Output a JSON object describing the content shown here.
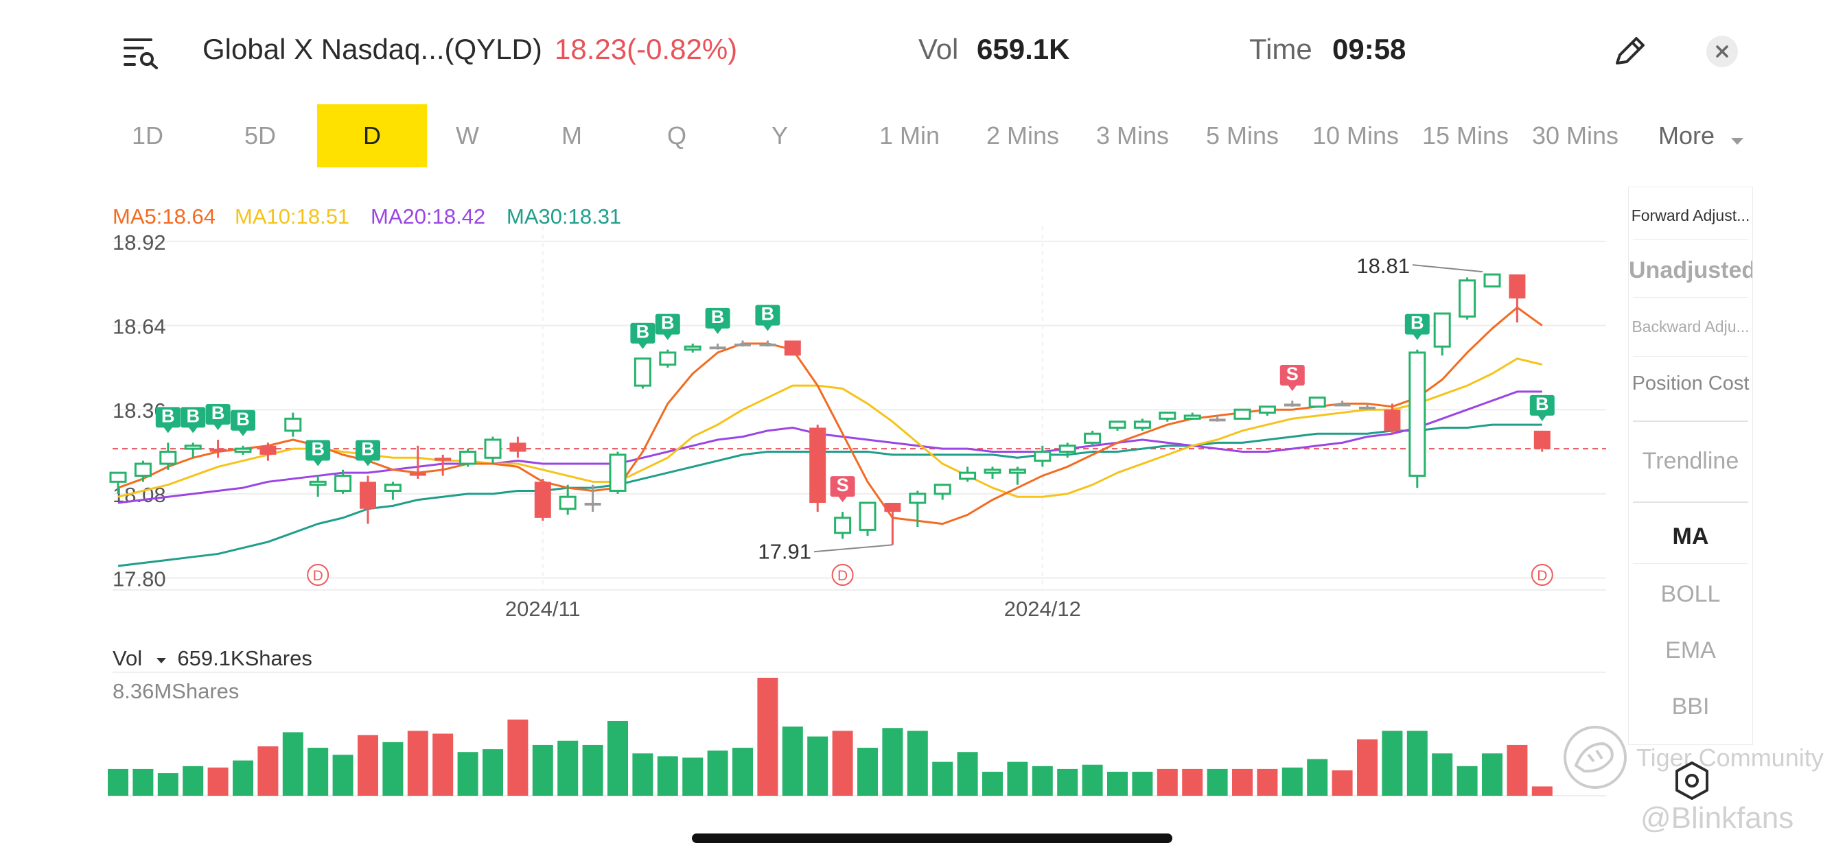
{
  "header": {
    "stock_name": "Global X Nasdaq...(QYLD)",
    "price_change": "18.23(-0.82%)",
    "vol_label": "Vol",
    "vol_value": "659.1K",
    "time_label": "Time",
    "time_value": "09:58",
    "icons": {
      "menu": "menu-search-icon",
      "edit": "pencil-icon",
      "close": "close-icon"
    }
  },
  "tabs": [
    {
      "label": "1D",
      "active": false
    },
    {
      "label": "5D",
      "active": false
    },
    {
      "label": "D",
      "active": true
    },
    {
      "label": "W",
      "active": false
    },
    {
      "label": "M",
      "active": false
    },
    {
      "label": "Q",
      "active": false
    },
    {
      "label": "Y",
      "active": false
    },
    {
      "label": "1 Min",
      "active": false
    },
    {
      "label": "2 Mins",
      "active": false
    },
    {
      "label": "3 Mins",
      "active": false
    },
    {
      "label": "5 Mins",
      "active": false
    },
    {
      "label": "10 Mins",
      "active": false
    },
    {
      "label": "15 Mins",
      "active": false
    },
    {
      "label": "30 Mins",
      "active": false
    }
  ],
  "more_label": "More",
  "side_panel": {
    "adjust": [
      "Forward Adjust...",
      "Unadjusted",
      "Backward Adju...",
      "Position Cost"
    ],
    "trendline": "Trendline",
    "indicators": [
      "MA",
      "BOLL",
      "EMA",
      "BBI"
    ]
  },
  "chart_data": {
    "type": "candlestick",
    "ma_legend": [
      {
        "label": "MA5:18.64",
        "color": "#f26b21"
      },
      {
        "label": "MA10:18.51",
        "color": "#f5c31a"
      },
      {
        "label": "MA20:18.42",
        "color": "#9b45e4"
      },
      {
        "label": "MA30:18.31",
        "color": "#1f9e8a"
      }
    ],
    "y_ticks": [
      "18.92",
      "18.64",
      "18.36",
      "18.08",
      "17.80"
    ],
    "y_tick_values": [
      18.92,
      18.64,
      18.36,
      18.08,
      17.8
    ],
    "ylim": [
      17.76,
      18.97
    ],
    "x_labels": [
      {
        "label": "2024/11",
        "index": 17
      },
      {
        "label": "2024/12",
        "index": 37
      }
    ],
    "current_price": 18.23,
    "high_label": "18.81",
    "low_label": "17.91",
    "colors": {
      "up": "#26b36b",
      "down": "#ee5a5a",
      "neutral": "#9a9a9a",
      "buy_marker": "#1fb27e",
      "sell_marker": "#ee5a6d",
      "dividend": "#ee5a5a"
    },
    "candles": [
      {
        "o": 18.12,
        "h": 18.15,
        "l": 18.08,
        "c": 18.15
      },
      {
        "o": 18.14,
        "h": 18.19,
        "l": 18.12,
        "c": 18.18
      },
      {
        "o": 18.18,
        "h": 18.25,
        "l": 18.16,
        "c": 18.22
      },
      {
        "o": 18.23,
        "h": 18.25,
        "l": 18.2,
        "c": 18.24
      },
      {
        "o": 18.23,
        "h": 18.26,
        "l": 18.2,
        "c": 18.22
      },
      {
        "o": 18.22,
        "h": 18.24,
        "l": 18.21,
        "c": 18.23
      },
      {
        "o": 18.24,
        "h": 18.25,
        "l": 18.19,
        "c": 18.21
      },
      {
        "o": 18.29,
        "h": 18.35,
        "l": 18.27,
        "c": 18.33
      },
      {
        "o": 18.11,
        "h": 18.14,
        "l": 18.07,
        "c": 18.12
      },
      {
        "o": 18.09,
        "h": 18.16,
        "l": 18.08,
        "c": 18.14
      },
      {
        "o": 18.12,
        "h": 18.14,
        "l": 17.98,
        "c": 18.03
      },
      {
        "o": 18.09,
        "h": 18.12,
        "l": 18.06,
        "c": 18.11
      },
      {
        "o": 18.15,
        "h": 18.24,
        "l": 18.13,
        "c": 18.14
      },
      {
        "o": 18.2,
        "h": 18.21,
        "l": 18.14,
        "c": 18.19
      },
      {
        "o": 18.18,
        "h": 18.23,
        "l": 18.17,
        "c": 18.22
      },
      {
        "o": 18.2,
        "h": 18.27,
        "l": 18.18,
        "c": 18.26
      },
      {
        "o": 18.25,
        "h": 18.27,
        "l": 18.2,
        "c": 18.22
      },
      {
        "o": 18.12,
        "h": 18.13,
        "l": 17.99,
        "c": 18.0
      },
      {
        "o": 18.03,
        "h": 18.11,
        "l": 18.01,
        "c": 18.07
      },
      {
        "o": 18.05,
        "h": 18.11,
        "l": 18.02,
        "c": 18.05
      },
      {
        "o": 18.09,
        "h": 18.22,
        "l": 18.08,
        "c": 18.21
      },
      {
        "o": 18.44,
        "h": 18.53,
        "l": 18.43,
        "c": 18.53
      },
      {
        "o": 18.51,
        "h": 18.56,
        "l": 18.5,
        "c": 18.55
      },
      {
        "o": 18.56,
        "h": 18.58,
        "l": 18.55,
        "c": 18.57
      },
      {
        "o": 18.57,
        "h": 18.58,
        "l": 18.56,
        "c": 18.57
      },
      {
        "o": 18.58,
        "h": 18.59,
        "l": 18.57,
        "c": 18.58
      },
      {
        "o": 18.58,
        "h": 18.59,
        "l": 18.57,
        "c": 18.58
      },
      {
        "o": 18.59,
        "h": 18.59,
        "l": 18.54,
        "c": 18.54
      },
      {
        "o": 18.3,
        "h": 18.31,
        "l": 18.02,
        "c": 18.05
      },
      {
        "o": 17.95,
        "h": 18.02,
        "l": 17.93,
        "c": 18.0
      },
      {
        "o": 17.96,
        "h": 18.05,
        "l": 17.94,
        "c": 18.05
      },
      {
        "o": 18.05,
        "h": 18.05,
        "l": 17.91,
        "c": 18.02
      },
      {
        "o": 18.05,
        "h": 18.09,
        "l": 17.97,
        "c": 18.08
      },
      {
        "o": 18.08,
        "h": 18.11,
        "l": 18.06,
        "c": 18.11
      },
      {
        "o": 18.13,
        "h": 18.17,
        "l": 18.12,
        "c": 18.15
      },
      {
        "o": 18.15,
        "h": 18.17,
        "l": 18.13,
        "c": 18.16
      },
      {
        "o": 18.15,
        "h": 18.17,
        "l": 18.11,
        "c": 18.16
      },
      {
        "o": 18.19,
        "h": 18.24,
        "l": 18.17,
        "c": 18.22
      },
      {
        "o": 18.22,
        "h": 18.25,
        "l": 18.2,
        "c": 18.24
      },
      {
        "o": 18.25,
        "h": 18.29,
        "l": 18.24,
        "c": 18.28
      },
      {
        "o": 18.3,
        "h": 18.32,
        "l": 18.29,
        "c": 18.32
      },
      {
        "o": 18.3,
        "h": 18.33,
        "l": 18.29,
        "c": 18.32
      },
      {
        "o": 18.33,
        "h": 18.35,
        "l": 18.32,
        "c": 18.35
      },
      {
        "o": 18.33,
        "h": 18.35,
        "l": 18.33,
        "c": 18.34
      },
      {
        "o": 18.33,
        "h": 18.34,
        "l": 18.32,
        "c": 18.33
      },
      {
        "o": 18.33,
        "h": 18.36,
        "l": 18.33,
        "c": 18.36
      },
      {
        "o": 18.35,
        "h": 18.37,
        "l": 18.34,
        "c": 18.37
      },
      {
        "o": 18.38,
        "h": 18.39,
        "l": 18.37,
        "c": 18.38
      },
      {
        "o": 18.37,
        "h": 18.4,
        "l": 18.37,
        "c": 18.4
      },
      {
        "o": 18.38,
        "h": 18.39,
        "l": 18.38,
        "c": 18.38
      },
      {
        "o": 18.37,
        "h": 18.38,
        "l": 18.36,
        "c": 18.37
      },
      {
        "o": 18.36,
        "h": 18.38,
        "l": 18.28,
        "c": 18.29
      },
      {
        "o": 18.14,
        "h": 18.56,
        "l": 18.1,
        "c": 18.55
      },
      {
        "o": 18.57,
        "h": 18.68,
        "l": 18.54,
        "c": 18.68
      },
      {
        "o": 18.67,
        "h": 18.8,
        "l": 18.66,
        "c": 18.79
      },
      {
        "o": 18.77,
        "h": 18.81,
        "l": 18.77,
        "c": 18.81
      },
      {
        "o": 18.81,
        "h": 18.81,
        "l": 18.65,
        "c": 18.73
      },
      {
        "o": 18.29,
        "h": 18.29,
        "l": 18.22,
        "c": 18.23
      }
    ],
    "ma5": [
      18.1,
      18.13,
      18.17,
      18.2,
      18.22,
      18.23,
      18.24,
      18.26,
      18.24,
      18.21,
      18.19,
      18.16,
      18.15,
      18.16,
      18.18,
      18.18,
      18.17,
      18.12,
      18.1,
      18.09,
      18.1,
      18.22,
      18.38,
      18.48,
      18.55,
      18.58,
      18.58,
      18.56,
      18.44,
      18.28,
      18.12,
      18.0,
      17.99,
      17.98,
      18.01,
      18.06,
      18.1,
      18.14,
      18.17,
      18.21,
      18.25,
      18.28,
      18.31,
      18.33,
      18.34,
      18.35,
      18.36,
      18.36,
      18.37,
      18.38,
      18.38,
      18.37,
      18.4,
      18.46,
      18.55,
      18.63,
      18.7,
      18.64
    ],
    "ma10": [
      18.07,
      18.09,
      18.11,
      18.14,
      18.17,
      18.19,
      18.21,
      18.23,
      18.23,
      18.22,
      18.21,
      18.2,
      18.2,
      18.19,
      18.19,
      18.18,
      18.18,
      18.16,
      18.14,
      18.12,
      18.12,
      18.16,
      18.2,
      18.27,
      18.31,
      18.36,
      18.4,
      18.44,
      18.44,
      18.43,
      18.38,
      18.32,
      18.25,
      18.18,
      18.14,
      18.1,
      18.07,
      18.07,
      18.08,
      18.11,
      18.15,
      18.18,
      18.21,
      18.24,
      18.26,
      18.29,
      18.31,
      18.33,
      18.34,
      18.35,
      18.36,
      18.36,
      18.38,
      18.41,
      18.44,
      18.48,
      18.53,
      18.51
    ],
    "ma20": [
      18.05,
      18.06,
      18.07,
      18.08,
      18.09,
      18.1,
      18.12,
      18.13,
      18.14,
      18.15,
      18.15,
      18.16,
      18.17,
      18.18,
      18.18,
      18.18,
      18.19,
      18.18,
      18.18,
      18.18,
      18.18,
      18.2,
      18.22,
      18.24,
      18.26,
      18.27,
      18.29,
      18.3,
      18.28,
      18.27,
      18.26,
      18.25,
      18.24,
      18.23,
      18.23,
      18.22,
      18.22,
      18.22,
      18.23,
      18.24,
      18.25,
      18.26,
      18.25,
      18.24,
      18.23,
      18.22,
      18.22,
      18.23,
      18.24,
      18.25,
      18.27,
      18.28,
      18.3,
      18.33,
      18.36,
      18.39,
      18.42,
      18.42
    ],
    "ma30": [
      17.84,
      17.85,
      17.86,
      17.87,
      17.88,
      17.9,
      17.92,
      17.95,
      17.98,
      18.0,
      18.03,
      18.04,
      18.06,
      18.07,
      18.08,
      18.08,
      18.09,
      18.09,
      18.1,
      18.1,
      18.11,
      18.13,
      18.15,
      18.17,
      18.19,
      18.21,
      18.22,
      18.22,
      18.22,
      18.22,
      18.22,
      18.21,
      18.21,
      18.21,
      18.21,
      18.21,
      18.2,
      18.21,
      18.21,
      18.22,
      18.22,
      18.23,
      18.24,
      18.24,
      18.25,
      18.25,
      18.26,
      18.27,
      18.28,
      18.28,
      18.28,
      18.29,
      18.29,
      18.3,
      18.3,
      18.31,
      18.31,
      18.31
    ],
    "signals": [
      {
        "index": 2,
        "type": "B"
      },
      {
        "index": 3,
        "type": "B"
      },
      {
        "index": 4,
        "type": "B"
      },
      {
        "index": 5,
        "type": "B"
      },
      {
        "index": 8,
        "type": "B"
      },
      {
        "index": 10,
        "type": "B"
      },
      {
        "index": 21,
        "type": "B"
      },
      {
        "index": 22,
        "type": "B"
      },
      {
        "index": 24,
        "type": "B"
      },
      {
        "index": 26,
        "type": "B"
      },
      {
        "index": 29,
        "type": "S"
      },
      {
        "index": 47,
        "type": "S"
      },
      {
        "index": 52,
        "type": "B"
      },
      {
        "index": 57,
        "type": "B"
      }
    ],
    "dividends": [
      8,
      29,
      57
    ],
    "dividend_label": "D",
    "volume": {
      "label": "Vol",
      "value_text": "659.1KShares",
      "max_text": "8.36MShares",
      "max": 8.36,
      "values": [
        1.9,
        1.9,
        1.6,
        2.1,
        2.0,
        2.5,
        3.5,
        4.5,
        3.4,
        2.9,
        4.3,
        3.8,
        4.6,
        4.4,
        3.1,
        3.3,
        5.4,
        3.6,
        3.9,
        3.6,
        5.3,
        3.0,
        2.8,
        2.7,
        3.2,
        3.4,
        8.36,
        4.9,
        4.2,
        4.6,
        3.4,
        4.8,
        4.6,
        2.4,
        3.1,
        1.7,
        2.4,
        2.1,
        1.9,
        2.2,
        1.7,
        1.7,
        1.9,
        1.9,
        1.9,
        1.9,
        1.9,
        2.0,
        2.6,
        1.8,
        4.0,
        4.6,
        4.6,
        3.0,
        2.1,
        3.0,
        3.6,
        0.66
      ],
      "up": [
        true,
        true,
        true,
        true,
        false,
        true,
        false,
        true,
        true,
        true,
        false,
        true,
        false,
        false,
        true,
        true,
        false,
        true,
        true,
        true,
        true,
        true,
        true,
        true,
        true,
        true,
        false,
        true,
        true,
        false,
        true,
        true,
        true,
        true,
        true,
        true,
        true,
        true,
        true,
        true,
        true,
        true,
        false,
        false,
        true,
        false,
        false,
        true,
        true,
        false,
        false,
        true,
        true,
        true,
        true,
        true,
        false,
        false
      ]
    }
  },
  "watermark": {
    "brand": "Tiger Community",
    "user": "@Blinkfans"
  },
  "settings_icon": "hexagon-settings-icon"
}
